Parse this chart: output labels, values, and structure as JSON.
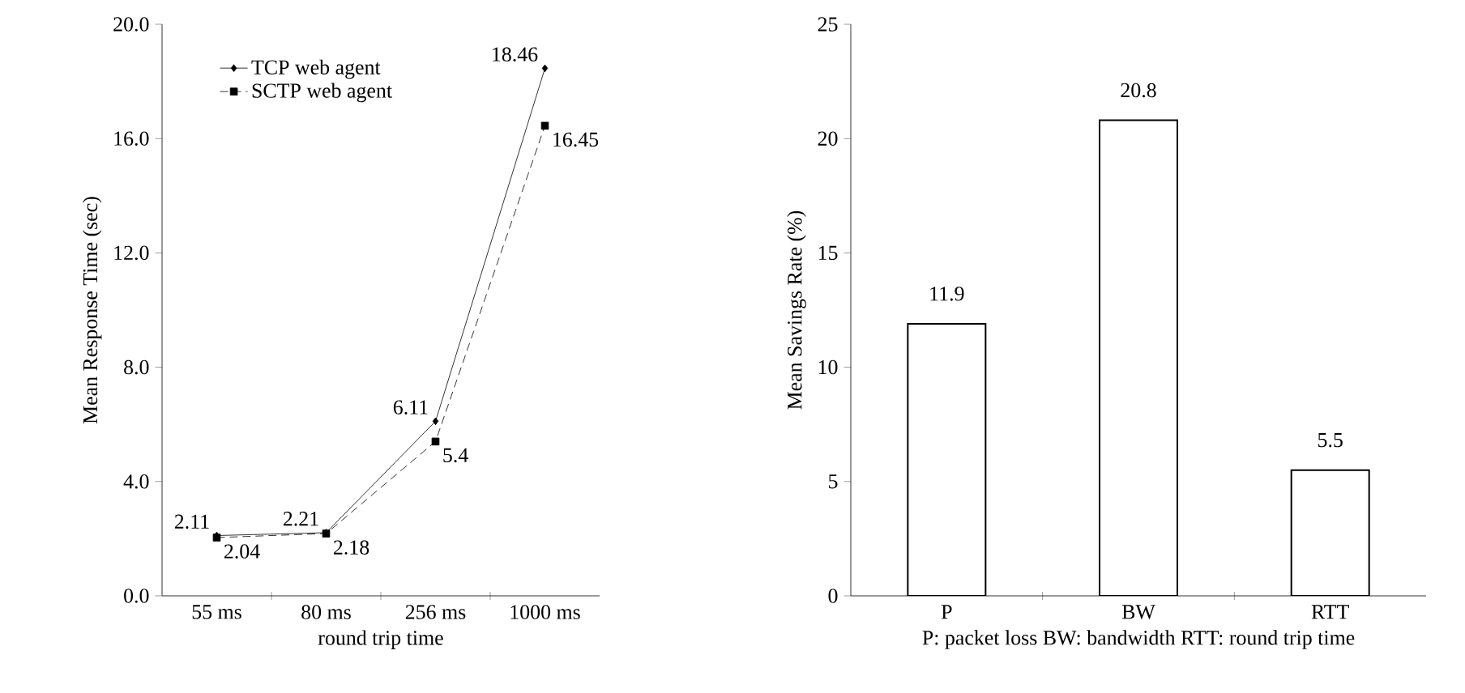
{
  "chart_data": [
    {
      "type": "line",
      "xlabel": "round trip time",
      "ylabel": "Mean Response Time (sec)",
      "categories": [
        "55 ms",
        "80 ms",
        "256 ms",
        "1000 ms"
      ],
      "ylim": [
        0,
        20
      ],
      "yticks": [
        {
          "value": 0,
          "label": "0.0"
        },
        {
          "value": 4,
          "label": "4.0"
        },
        {
          "value": 8,
          "label": "8.0"
        },
        {
          "value": 12,
          "label": "12.0"
        },
        {
          "value": 16,
          "label": "16.0"
        },
        {
          "value": 20,
          "label": "20.0"
        }
      ],
      "series": [
        {
          "name": "TCP   web agent",
          "color": "#000000",
          "values": [
            2.11,
            2.21,
            6.11,
            18.46
          ],
          "marker": "diamond",
          "line_style": "solid"
        },
        {
          "name": "SCTP web agent",
          "color": "#000000",
          "values": [
            2.04,
            2.18,
            5.4,
            16.45
          ],
          "marker": "square",
          "line_style": "dashed"
        }
      ],
      "data_labels": true,
      "legend": "top left",
      "grid": false
    },
    {
      "type": "bar",
      "xlabel": "P: packet loss  BW: bandwidth  RTT: round trip time",
      "ylabel": "Mean Savings Rate (%)",
      "categories": [
        "P",
        "BW",
        "RTT"
      ],
      "values": [
        11.9,
        20.8,
        5.5
      ],
      "color": "#ffffff",
      "ylim": [
        0,
        25
      ],
      "yticks": [
        0,
        5,
        10,
        15,
        20,
        25
      ],
      "data_labels": true,
      "grid": false
    }
  ]
}
